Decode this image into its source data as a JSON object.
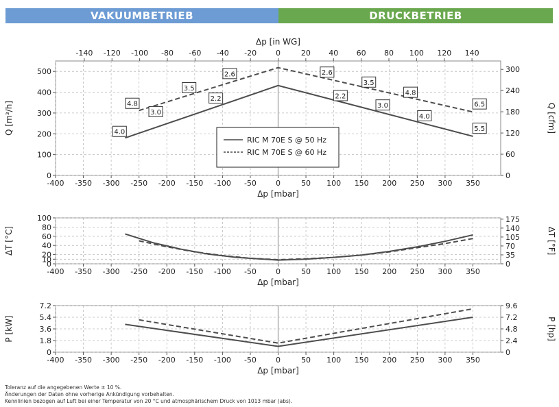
{
  "header": {
    "vacuum_label": "VAKUUMBETRIEB",
    "pressure_label": "DRUCKBETRIEB",
    "vacuum_color": "#6d9bd4",
    "pressure_color": "#6aa84f"
  },
  "footnotes": [
    "Toleranz auf die angegebenen Werte ± 10 %.",
    "Änderungen der Daten ohne vorherige Ankündigung vorbehalten.",
    "Kennlinien bezogen auf Luft bei einer Temperatur von 20 °C und atmosphärischem Druck von 1013 mbar (abs)."
  ],
  "legend": {
    "line_50": "RIC M 70E S @ 50 Hz",
    "line_60": "RIC M 70E S @ 60 Hz"
  },
  "chart_data": [
    {
      "type": "line",
      "xlabel": "Δp [mbar]",
      "xlabel_top": "Δp [in WG]",
      "ylabel": "Q [m³/h]",
      "ylabel_right": "Q [cfm]",
      "xlim": [
        -400,
        400
      ],
      "ylim": [
        0,
        550
      ],
      "xticks": [
        "-400",
        "-350",
        "-300",
        "-250",
        "-200",
        "-150",
        "-100",
        "-50",
        "0",
        "50",
        "100",
        "150",
        "200",
        "250",
        "300",
        "350"
      ],
      "yticks": [
        "0",
        "100",
        "200",
        "300",
        "400",
        "500"
      ],
      "top_ticks": [
        "-140",
        "-120",
        "-100",
        "-80",
        "-60",
        "-40",
        "-20",
        "0",
        "20",
        "40",
        "60",
        "80",
        "100",
        "120",
        "140"
      ],
      "right_ticks": [
        "0",
        "60",
        "120",
        "180",
        "240",
        "300"
      ],
      "grid": true,
      "series": [
        {
          "name": "RIC M 70E S @ 50 Hz",
          "style": "solid",
          "x": [
            -275,
            0,
            350
          ],
          "y": [
            180,
            432,
            188
          ]
        },
        {
          "name": "RIC M 70E S @ 60 Hz",
          "style": "dashed",
          "x": [
            -250,
            0,
            350
          ],
          "y": [
            312,
            518,
            305
          ]
        }
      ],
      "annotations": [
        {
          "text": "4.0",
          "x": -285,
          "y": 210
        },
        {
          "text": "4.8",
          "x": -262,
          "y": 345
        },
        {
          "text": "3.0",
          "x": -220,
          "y": 305
        },
        {
          "text": "3.5",
          "x": -160,
          "y": 420
        },
        {
          "text": "2.2",
          "x": -112,
          "y": 370
        },
        {
          "text": "2.6",
          "x": -87,
          "y": 488
        },
        {
          "text": "2.6",
          "x": 88,
          "y": 495
        },
        {
          "text": "2.2",
          "x": 112,
          "y": 382
        },
        {
          "text": "3.5",
          "x": 163,
          "y": 447
        },
        {
          "text": "3.0",
          "x": 188,
          "y": 337
        },
        {
          "text": "4.8",
          "x": 238,
          "y": 398
        },
        {
          "text": "4.0",
          "x": 263,
          "y": 285
        },
        {
          "text": "6.5",
          "x": 362,
          "y": 342
        },
        {
          "text": "5.5",
          "x": 362,
          "y": 225
        }
      ]
    },
    {
      "type": "line",
      "xlabel": "Δp [mbar]",
      "ylabel": "ΔT [°C]",
      "ylabel_right": "ΔT [°F]",
      "xlim": [
        -400,
        400
      ],
      "ylim": [
        0,
        100
      ],
      "xticks": [
        "-400",
        "-350",
        "-300",
        "-250",
        "-200",
        "-150",
        "-100",
        "-50",
        "0",
        "50",
        "100",
        "150",
        "200",
        "250",
        "300",
        "350"
      ],
      "yticks": [
        "0",
        "10",
        "20",
        "40",
        "60",
        "80",
        "100"
      ],
      "right_ticks": [
        "0",
        "35",
        "70",
        "105",
        "140",
        "175"
      ],
      "grid": true,
      "series": [
        {
          "name": "RIC M 70E S @ 50 Hz",
          "style": "solid",
          "x": [
            -275,
            -225,
            -175,
            -125,
            -75,
            -25,
            0,
            50,
            100,
            150,
            200,
            250,
            300,
            350
          ],
          "y": [
            65,
            46,
            32,
            21,
            14,
            10,
            8,
            10,
            14,
            19,
            27,
            37,
            49,
            63
          ]
        },
        {
          "name": "RIC M 70E S @ 60 Hz",
          "style": "dashed",
          "x": [
            -250,
            -200,
            -150,
            -100,
            -50,
            0,
            50,
            100,
            150,
            200,
            250,
            300,
            350
          ],
          "y": [
            50,
            37,
            26,
            18,
            12,
            9,
            11,
            14,
            19,
            26,
            35,
            44,
            55
          ]
        }
      ]
    },
    {
      "type": "line",
      "xlabel": "Δp [mbar]",
      "ylabel": "P [kW]",
      "ylabel_right": "P [hp]",
      "xlim": [
        -400,
        400
      ],
      "ylim": [
        0,
        7.2
      ],
      "xticks": [
        "-400",
        "-350",
        "-300",
        "-250",
        "-200",
        "-150",
        "-100",
        "-50",
        "0",
        "50",
        "100",
        "150",
        "200",
        "250",
        "300",
        "350"
      ],
      "yticks": [
        "0",
        "1.8",
        "3.6",
        "5.4",
        "7.2"
      ],
      "right_ticks": [
        "0",
        "2.4",
        "4.8",
        "7.2",
        "9.6"
      ],
      "grid": true,
      "series": [
        {
          "name": "RIC M 70E S @ 50 Hz",
          "style": "solid",
          "x": [
            -275,
            0,
            350
          ],
          "y": [
            4.3,
            0.9,
            5.4
          ]
        },
        {
          "name": "RIC M 70E S @ 60 Hz",
          "style": "dashed",
          "x": [
            -250,
            0,
            350
          ],
          "y": [
            5.0,
            1.4,
            6.7
          ]
        }
      ]
    }
  ]
}
